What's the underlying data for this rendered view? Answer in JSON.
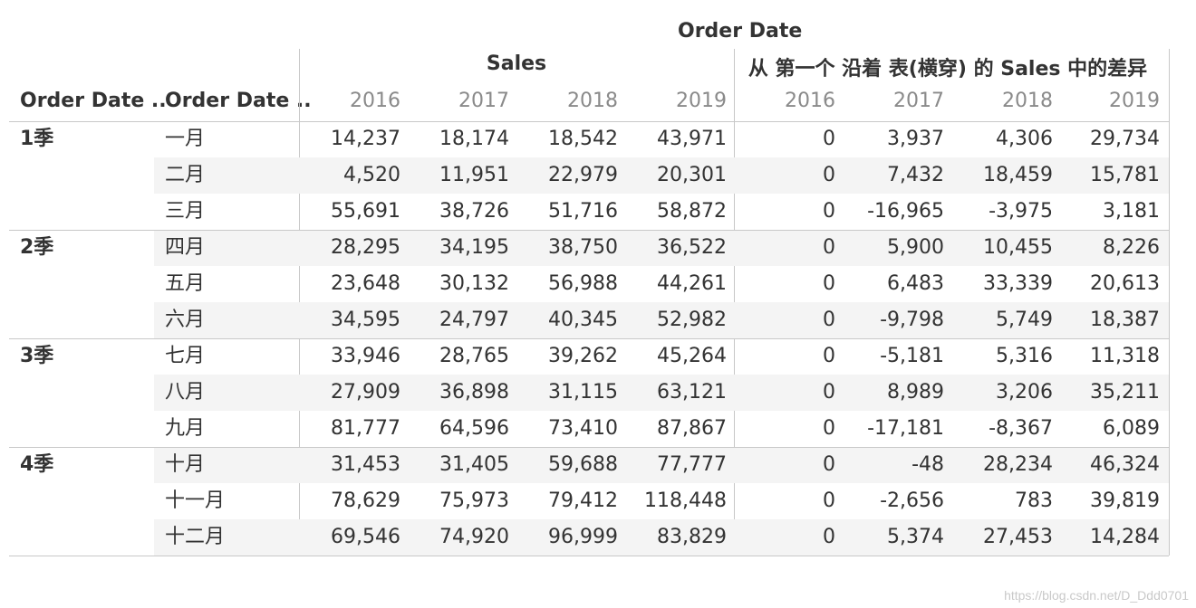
{
  "header": {
    "top_title": "Order Date",
    "group_sales": "Sales",
    "group_diff": "从 第一个 沿着 表(横穿) 的 Sales 中的差异",
    "row_header_1": "Order Date ..",
    "row_header_2": "Order Date ..",
    "years": [
      "2016",
      "2017",
      "2018",
      "2019"
    ]
  },
  "rows": [
    {
      "quarter": "1季",
      "month": "一月",
      "sales": [
        "14,237",
        "18,174",
        "18,542",
        "43,971"
      ],
      "diff": [
        "0",
        "3,937",
        "4,306",
        "29,734"
      ]
    },
    {
      "quarter": "",
      "month": "二月",
      "sales": [
        "4,520",
        "11,951",
        "22,979",
        "20,301"
      ],
      "diff": [
        "0",
        "7,432",
        "18,459",
        "15,781"
      ]
    },
    {
      "quarter": "",
      "month": "三月",
      "sales": [
        "55,691",
        "38,726",
        "51,716",
        "58,872"
      ],
      "diff": [
        "0",
        "-16,965",
        "-3,975",
        "3,181"
      ]
    },
    {
      "quarter": "2季",
      "month": "四月",
      "sales": [
        "28,295",
        "34,195",
        "38,750",
        "36,522"
      ],
      "diff": [
        "0",
        "5,900",
        "10,455",
        "8,226"
      ]
    },
    {
      "quarter": "",
      "month": "五月",
      "sales": [
        "23,648",
        "30,132",
        "56,988",
        "44,261"
      ],
      "diff": [
        "0",
        "6,483",
        "33,339",
        "20,613"
      ]
    },
    {
      "quarter": "",
      "month": "六月",
      "sales": [
        "34,595",
        "24,797",
        "40,345",
        "52,982"
      ],
      "diff": [
        "0",
        "-9,798",
        "5,749",
        "18,387"
      ]
    },
    {
      "quarter": "3季",
      "month": "七月",
      "sales": [
        "33,946",
        "28,765",
        "39,262",
        "45,264"
      ],
      "diff": [
        "0",
        "-5,181",
        "5,316",
        "11,318"
      ]
    },
    {
      "quarter": "",
      "month": "八月",
      "sales": [
        "27,909",
        "36,898",
        "31,115",
        "63,121"
      ],
      "diff": [
        "0",
        "8,989",
        "3,206",
        "35,211"
      ]
    },
    {
      "quarter": "",
      "month": "九月",
      "sales": [
        "81,777",
        "64,596",
        "73,410",
        "87,867"
      ],
      "diff": [
        "0",
        "-17,181",
        "-8,367",
        "6,089"
      ]
    },
    {
      "quarter": "4季",
      "month": "十月",
      "sales": [
        "31,453",
        "31,405",
        "59,688",
        "77,777"
      ],
      "diff": [
        "0",
        "-48",
        "28,234",
        "46,324"
      ]
    },
    {
      "quarter": "",
      "month": "十一月",
      "sales": [
        "78,629",
        "75,973",
        "79,412",
        "118,448"
      ],
      "diff": [
        "0",
        "-2,656",
        "783",
        "39,819"
      ]
    },
    {
      "quarter": "",
      "month": "十二月",
      "sales": [
        "69,546",
        "74,920",
        "96,999",
        "83,829"
      ],
      "diff": [
        "0",
        "5,374",
        "27,453",
        "14,284"
      ]
    }
  ],
  "watermark": "https://blog.csdn.net/D_Ddd0701",
  "colors": {
    "row_shade": "#f4f4f4",
    "divider": "#c8c8c8",
    "year_text": "#8a8a8a"
  }
}
